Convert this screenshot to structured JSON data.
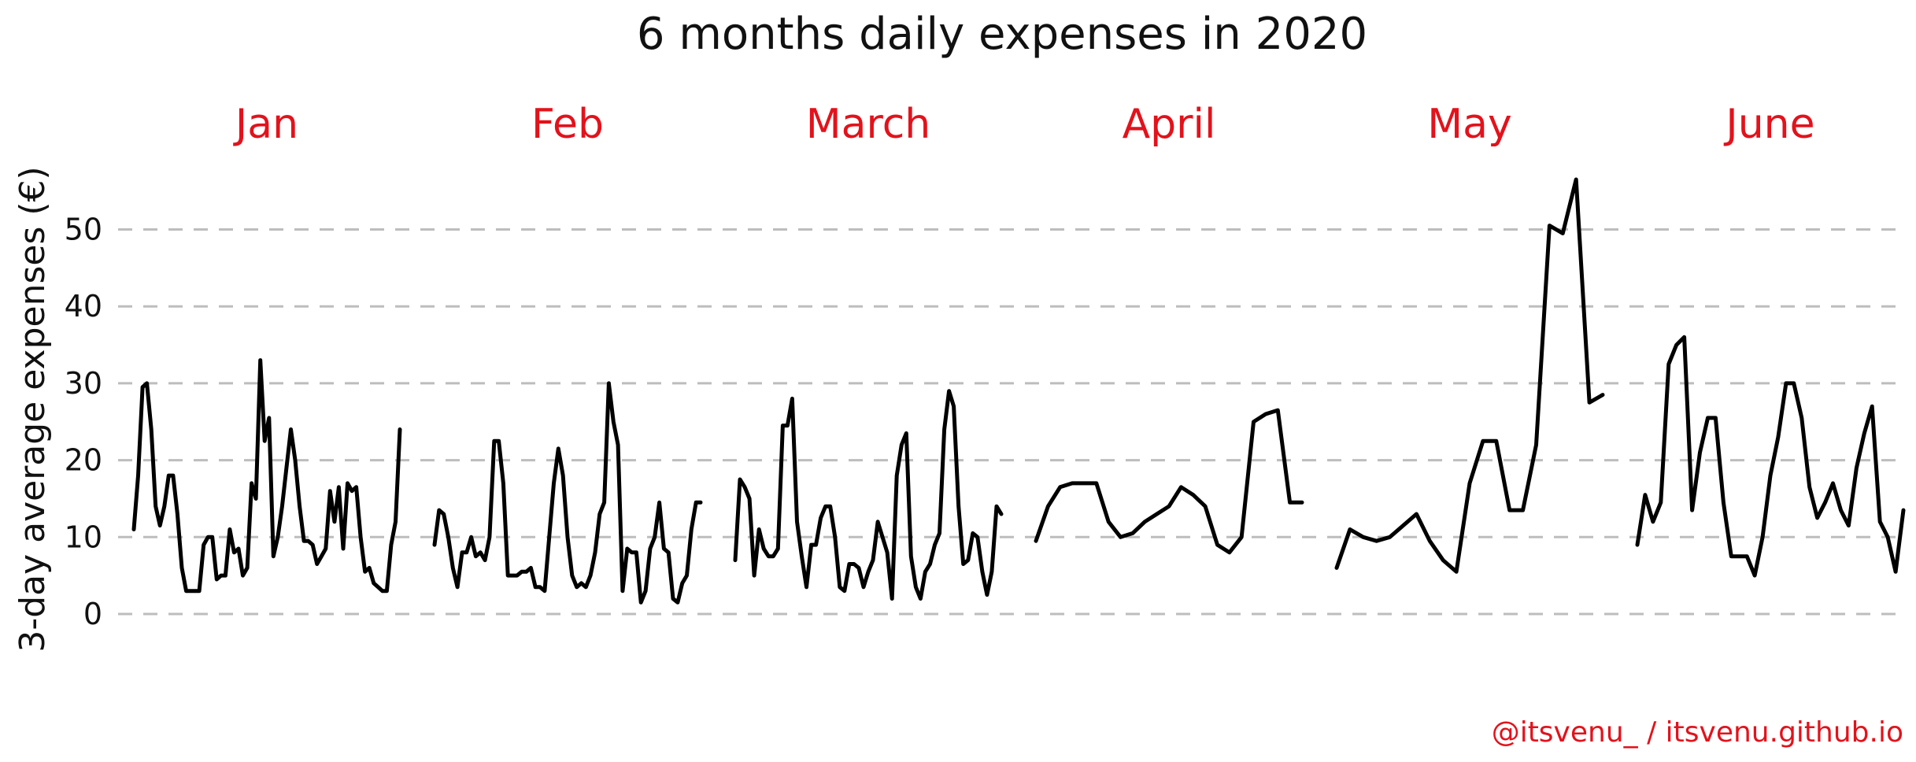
{
  "colors": {
    "accent": "#e3121b",
    "line": "#000000",
    "grid": "#bdbdbd",
    "text": "#111111"
  },
  "credit": "@itsvenu_ / itsvenu.github.io",
  "chart_data": {
    "type": "line",
    "title": "6 months daily expenses in 2020",
    "ylabel": "3-day average expenses (€)",
    "xlabel": "",
    "ylim": [
      0,
      58
    ],
    "yticks": [
      0,
      10,
      20,
      30,
      40,
      50
    ],
    "grid": "horizontal dashed",
    "panels": [
      {
        "name": "Jan",
        "values": [
          11,
          18,
          29.5,
          30,
          24,
          14,
          11.5,
          14,
          18,
          18,
          13,
          6,
          3,
          3,
          3,
          3,
          9,
          10,
          10,
          4.5,
          5,
          5,
          11,
          8,
          8.5,
          5,
          6,
          17,
          15,
          33,
          22.5,
          25.5,
          7.5,
          10,
          14,
          19,
          24,
          20,
          14,
          9.5,
          9.5,
          9,
          6.5,
          7.5,
          8.5,
          16,
          12,
          16.5,
          8.5,
          17,
          16,
          16.5,
          10,
          5.5,
          6,
          4,
          3.5,
          3,
          3,
          9,
          12,
          24
        ]
      },
      {
        "name": "Feb",
        "values": [
          9,
          13.5,
          13,
          10,
          6,
          3.5,
          8,
          8,
          10,
          7.5,
          8,
          7,
          10,
          22.5,
          22.5,
          17,
          5,
          5,
          5,
          5.5,
          5.5,
          6,
          3.5,
          3.5,
          3,
          10,
          17,
          21.5,
          18,
          10,
          5,
          3.5,
          4,
          3.5,
          5,
          8,
          13,
          14.5,
          30,
          25,
          22,
          3,
          8.5,
          8,
          8,
          1.5,
          3,
          8.5,
          10,
          14.5,
          8.5,
          8,
          2,
          1.5,
          4,
          5,
          11,
          14.5,
          14.5
        ]
      },
      {
        "name": "March",
        "values": [
          7,
          17.5,
          16.5,
          15,
          5,
          11,
          8.5,
          7.5,
          7.5,
          8.5,
          24.5,
          24.5,
          28,
          12,
          7.5,
          3.5,
          9,
          9,
          12.5,
          14,
          14,
          10,
          3.5,
          3,
          6.5,
          6.5,
          6,
          3.5,
          5.5,
          7,
          12,
          10,
          8,
          2,
          18,
          22,
          23.5,
          7.5,
          3.5,
          2,
          5.5,
          6.5,
          9,
          10.5,
          24,
          29,
          27,
          14,
          6.5,
          7,
          10.5,
          10,
          5.5,
          2.5,
          5.5,
          14,
          13
        ]
      },
      {
        "name": "April",
        "values": [
          9.5,
          14,
          16.5,
          17,
          17,
          17,
          12,
          10,
          10.5,
          12,
          13,
          14,
          16.5,
          15.5,
          14,
          9,
          8,
          10,
          25,
          26,
          26.5,
          14.5,
          14.5
        ]
      },
      {
        "name": "May",
        "values": [
          6,
          11,
          10,
          9.5,
          10,
          11.5,
          13,
          9.5,
          7,
          5.5,
          17,
          22.5,
          22.5,
          13.5,
          13.5,
          22,
          50.5,
          49.5,
          56.5,
          27.5,
          28.5
        ]
      },
      {
        "name": "June",
        "values": [
          9,
          15.5,
          12,
          14.5,
          32.5,
          35,
          36,
          13.5,
          21,
          25.5,
          25.5,
          14.5,
          7.5,
          7.5,
          7.5,
          5,
          10,
          18,
          23,
          30,
          30,
          25.5,
          16.5,
          12.5,
          14.5,
          17,
          13.5,
          11.5,
          19,
          23.5,
          27,
          12,
          10,
          5.5,
          13.5
        ]
      }
    ]
  }
}
